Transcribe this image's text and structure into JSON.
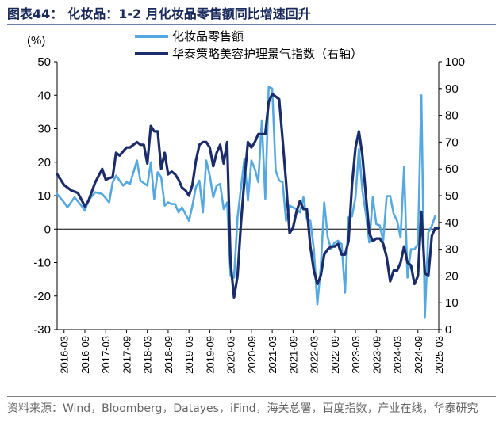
{
  "title": {
    "label": "图表44：",
    "text": "化妆品：1-2 月化妆品零售额同比增速回升"
  },
  "source": "资料来源：Wind，Bloomberg，Datayes，iFind，海关总署，百度指数，产业在线，华泰研究",
  "colors": {
    "series_retail": "#56a9e0",
    "series_index": "#1b2c6b",
    "axis": "#000000"
  },
  "chart_data": {
    "type": "line",
    "left_axis_unit": "(%)",
    "xlabel": "",
    "ylabel_left": "",
    "ylabel_right": "",
    "ylim_left": [
      -30,
      50
    ],
    "ylim_right": [
      0,
      100
    ],
    "yticks_left": [
      -30,
      -20,
      -10,
      0,
      10,
      20,
      30,
      40,
      50
    ],
    "yticks_right": [
      0,
      10,
      20,
      30,
      40,
      50,
      60,
      70,
      80,
      90,
      100
    ],
    "xticks": [
      "2016-03",
      "2016-09",
      "2017-03",
      "2017-09",
      "2018-03",
      "2018-09",
      "2019-03",
      "2019-09",
      "2020-03",
      "2020-09",
      "2021-03",
      "2021-09",
      "2022-03",
      "2022-09",
      "2023-03",
      "2023-09",
      "2024-03",
      "2024-09",
      "2025-03"
    ],
    "x_start": "2016-01",
    "x_end": "2025-03",
    "legend_position": "top-center",
    "grid": false,
    "series": [
      {
        "name": "化妆品零售额",
        "axis": "left",
        "color": "#56a9e0",
        "points": [
          [
            "2016-01",
            10.5
          ],
          [
            "2016-03",
            8.0
          ],
          [
            "2016-04",
            6.5
          ],
          [
            "2016-06",
            9.5
          ],
          [
            "2016-08",
            7.0
          ],
          [
            "2016-09",
            5.5
          ],
          [
            "2016-10",
            8.5
          ],
          [
            "2016-12",
            11.0
          ],
          [
            "2017-02",
            10.5
          ],
          [
            "2017-04",
            8.0
          ],
          [
            "2017-05",
            14.0
          ],
          [
            "2017-06",
            16.0
          ],
          [
            "2017-08",
            13.0
          ],
          [
            "2017-09",
            14.0
          ],
          [
            "2017-10",
            13.5
          ],
          [
            "2017-12",
            20.5
          ],
          [
            "2018-01",
            14.5
          ],
          [
            "2018-03",
            13.0
          ],
          [
            "2018-04",
            20.0
          ],
          [
            "2018-05",
            9.0
          ],
          [
            "2018-06",
            17.0
          ],
          [
            "2018-07",
            15.5
          ],
          [
            "2018-08",
            7.0
          ],
          [
            "2018-09",
            8.0
          ],
          [
            "2018-10",
            7.5
          ],
          [
            "2018-11",
            7.5
          ],
          [
            "2018-12",
            5.0
          ],
          [
            "2019-01",
            6.5
          ],
          [
            "2019-03",
            2.5
          ],
          [
            "2019-04",
            7.0
          ],
          [
            "2019-05",
            12.5
          ],
          [
            "2019-06",
            14.5
          ],
          [
            "2019-07",
            5.0
          ],
          [
            "2019-08",
            20.5
          ],
          [
            "2019-09",
            16.0
          ],
          [
            "2019-10",
            9.5
          ],
          [
            "2019-11",
            13.0
          ],
          [
            "2019-12",
            13.5
          ],
          [
            "2020-01",
            6.0
          ],
          [
            "2020-02",
            8.0
          ],
          [
            "2020-03",
            -14.0
          ],
          [
            "2020-04",
            -14.5
          ],
          [
            "2020-05",
            3.5
          ],
          [
            "2020-06",
            12.5
          ],
          [
            "2020-07",
            21.0
          ],
          [
            "2020-08",
            8.5
          ],
          [
            "2020-09",
            20.5
          ],
          [
            "2020-10",
            18.0
          ],
          [
            "2020-11",
            14.0
          ],
          [
            "2020-12",
            32.5
          ],
          [
            "2021-01",
            9.0
          ],
          [
            "2021-02",
            42.5
          ],
          [
            "2021-03",
            42.0
          ],
          [
            "2021-04",
            17.5
          ],
          [
            "2021-05",
            14.5
          ],
          [
            "2021-06",
            14.0
          ],
          [
            "2021-07",
            2.5
          ],
          [
            "2021-08",
            7.0
          ],
          [
            "2021-09",
            6.5
          ],
          [
            "2021-10",
            6.0
          ],
          [
            "2021-11",
            5.0
          ],
          [
            "2021-12",
            9.5
          ],
          [
            "2022-01",
            3.0
          ],
          [
            "2022-02",
            2.5
          ],
          [
            "2022-03",
            -6.0
          ],
          [
            "2022-04",
            -22.5
          ],
          [
            "2022-05",
            -11.5
          ],
          [
            "2022-06",
            8.0
          ],
          [
            "2022-07",
            -2.5
          ],
          [
            "2022-08",
            -6.0
          ],
          [
            "2022-09",
            -4.0
          ],
          [
            "2022-10",
            -3.5
          ],
          [
            "2022-11",
            -4.5
          ],
          [
            "2022-12",
            -19.0
          ],
          [
            "2023-01",
            3.5
          ],
          [
            "2023-02",
            3.8
          ],
          [
            "2023-03",
            9.5
          ],
          [
            "2023-04",
            24.0
          ],
          [
            "2023-05",
            11.5
          ],
          [
            "2023-06",
            4.5
          ],
          [
            "2023-07",
            -4.0
          ],
          [
            "2023-08",
            9.5
          ],
          [
            "2023-09",
            1.5
          ],
          [
            "2023-10",
            1.1
          ],
          [
            "2023-11",
            -3.5
          ],
          [
            "2023-12",
            9.8
          ],
          [
            "2024-01",
            9.9
          ],
          [
            "2024-02",
            4.5
          ],
          [
            "2024-03",
            2.5
          ],
          [
            "2024-04",
            -2.5
          ],
          [
            "2024-05",
            18.5
          ],
          [
            "2024-06",
            -14.5
          ],
          [
            "2024-07",
            -6.0
          ],
          [
            "2024-08",
            -6.0
          ],
          [
            "2024-09",
            -4.5
          ],
          [
            "2024-10",
            40.0
          ],
          [
            "2024-11",
            -26.5
          ],
          [
            "2024-12",
            -1.0
          ],
          [
            "2025-01",
            1.0
          ],
          [
            "2025-02",
            4.0
          ]
        ]
      },
      {
        "name": "华泰策略美容护理景气指数（右轴）",
        "axis": "right",
        "color": "#1b2c6b",
        "points": [
          [
            "2016-01",
            58
          ],
          [
            "2016-03",
            54
          ],
          [
            "2016-05",
            52
          ],
          [
            "2016-07",
            51
          ],
          [
            "2016-09",
            46
          ],
          [
            "2016-10",
            48
          ],
          [
            "2016-12",
            55
          ],
          [
            "2017-02",
            60
          ],
          [
            "2017-03",
            56
          ],
          [
            "2017-05",
            57
          ],
          [
            "2017-06",
            66
          ],
          [
            "2017-07",
            65
          ],
          [
            "2017-09",
            68
          ],
          [
            "2017-10",
            68
          ],
          [
            "2017-12",
            70
          ],
          [
            "2018-01",
            69
          ],
          [
            "2018-02",
            69
          ],
          [
            "2018-03",
            62
          ],
          [
            "2018-04",
            76
          ],
          [
            "2018-05",
            74
          ],
          [
            "2018-06",
            74
          ],
          [
            "2018-07",
            60
          ],
          [
            "2018-08",
            66
          ],
          [
            "2018-09",
            58
          ],
          [
            "2018-10",
            59
          ],
          [
            "2018-11",
            58
          ],
          [
            "2018-12",
            56
          ],
          [
            "2019-01",
            53
          ],
          [
            "2019-02",
            52
          ],
          [
            "2019-03",
            50
          ],
          [
            "2019-04",
            54
          ],
          [
            "2019-05",
            63
          ],
          [
            "2019-06",
            69
          ],
          [
            "2019-07",
            70
          ],
          [
            "2019-08",
            70
          ],
          [
            "2019-09",
            68
          ],
          [
            "2019-10",
            61
          ],
          [
            "2019-11",
            66
          ],
          [
            "2019-12",
            69
          ],
          [
            "2020-01",
            62
          ],
          [
            "2020-02",
            70
          ],
          [
            "2020-03",
            25
          ],
          [
            "2020-04",
            12
          ],
          [
            "2020-05",
            20
          ],
          [
            "2020-06",
            40
          ],
          [
            "2020-07",
            56
          ],
          [
            "2020-08",
            70
          ],
          [
            "2020-09",
            68
          ],
          [
            "2020-10",
            70
          ],
          [
            "2020-11",
            73
          ],
          [
            "2020-12",
            73
          ],
          [
            "2021-01",
            73
          ],
          [
            "2021-02",
            85
          ],
          [
            "2021-03",
            88
          ],
          [
            "2021-04",
            87
          ],
          [
            "2021-05",
            86
          ],
          [
            "2021-06",
            71
          ],
          [
            "2021-07",
            55
          ],
          [
            "2021-08",
            36
          ],
          [
            "2021-09",
            38
          ],
          [
            "2021-10",
            44
          ],
          [
            "2021-11",
            48
          ],
          [
            "2021-12",
            45
          ],
          [
            "2022-01",
            45
          ],
          [
            "2022-02",
            31
          ],
          [
            "2022-03",
            22
          ],
          [
            "2022-04",
            17
          ],
          [
            "2022-05",
            20
          ],
          [
            "2022-06",
            28
          ],
          [
            "2022-07",
            30
          ],
          [
            "2022-08",
            31
          ],
          [
            "2022-09",
            31
          ],
          [
            "2022-10",
            32
          ],
          [
            "2022-11",
            28
          ],
          [
            "2022-12",
            28
          ],
          [
            "2023-01",
            33
          ],
          [
            "2023-02",
            54
          ],
          [
            "2023-03",
            68
          ],
          [
            "2023-04",
            74
          ],
          [
            "2023-05",
            65
          ],
          [
            "2023-06",
            50
          ],
          [
            "2023-07",
            36
          ],
          [
            "2023-08",
            33
          ],
          [
            "2023-09",
            34
          ],
          [
            "2023-10",
            34
          ],
          [
            "2023-11",
            32
          ],
          [
            "2023-12",
            27
          ],
          [
            "2024-01",
            18
          ],
          [
            "2024-02",
            22
          ],
          [
            "2024-03",
            22
          ],
          [
            "2024-04",
            25
          ],
          [
            "2024-05",
            31
          ],
          [
            "2024-06",
            25
          ],
          [
            "2024-07",
            24
          ],
          [
            "2024-08",
            17
          ],
          [
            "2024-09",
            20
          ],
          [
            "2024-10",
            44
          ],
          [
            "2024-11",
            21
          ],
          [
            "2024-12",
            20
          ],
          [
            "2025-01",
            35
          ],
          [
            "2025-02",
            38
          ],
          [
            "2025-03",
            38
          ]
        ]
      }
    ]
  }
}
